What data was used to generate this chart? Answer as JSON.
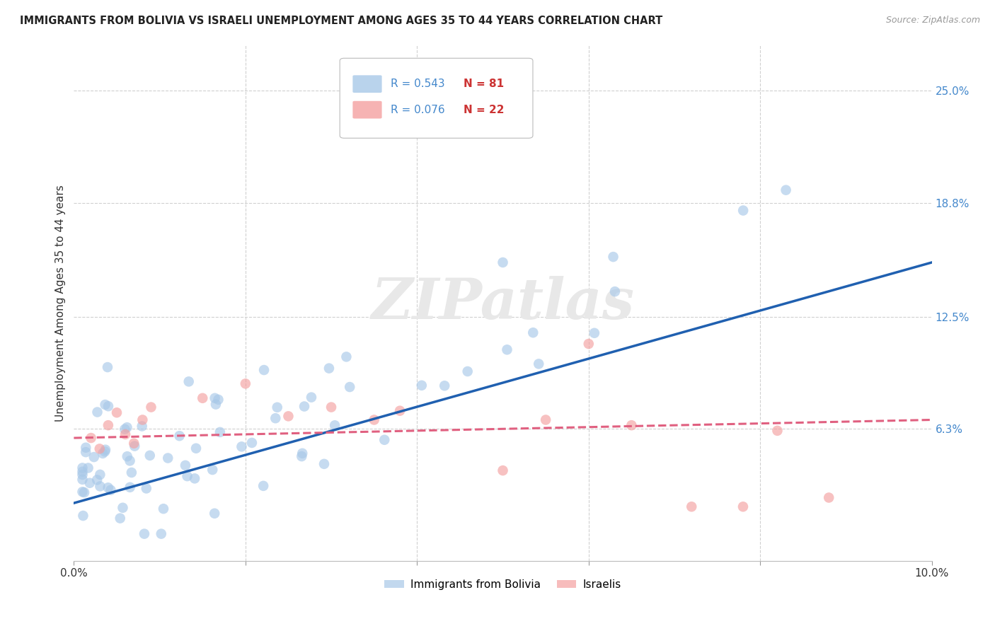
{
  "title": "IMMIGRANTS FROM BOLIVIA VS ISRAELI UNEMPLOYMENT AMONG AGES 35 TO 44 YEARS CORRELATION CHART",
  "source": "Source: ZipAtlas.com",
  "ylabel": "Unemployment Among Ages 35 to 44 years",
  "ytick_labels": [
    "6.3%",
    "12.5%",
    "18.8%",
    "25.0%"
  ],
  "ytick_values": [
    0.063,
    0.125,
    0.188,
    0.25
  ],
  "xmin": 0.0,
  "xmax": 0.1,
  "ymin": -0.01,
  "ymax": 0.275,
  "legend_label1": "Immigrants from Bolivia",
  "legend_label2": "Israelis",
  "blue_color": "#a8c8e8",
  "pink_color": "#f4a0a0",
  "blue_line_color": "#2060b0",
  "pink_line_color": "#e06080",
  "blue_trend": [
    0.0,
    0.1,
    0.022,
    0.155
  ],
  "pink_trend": [
    0.0,
    0.1,
    0.058,
    0.068
  ],
  "watermark_text": "ZIPatlas",
  "bg_color": "#ffffff",
  "grid_color": "#d0d0d0",
  "r1_text": "R = 0.543",
  "n1_text": "N = 81",
  "r2_text": "R = 0.076",
  "n2_text": "N = 22",
  "r_color": "#4488cc",
  "n_color": "#cc3333"
}
